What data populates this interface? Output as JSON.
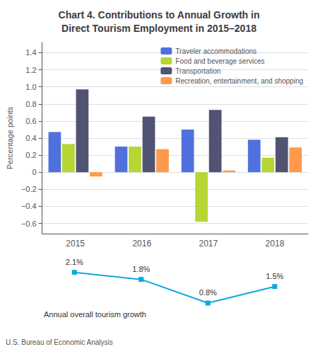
{
  "chart_data": [
    {
      "type": "bar",
      "title": "Chart 4. Contributions to Annual Growth in\nDirect Tourism Employment in 2015–2018",
      "ylabel": "Percentage points",
      "categories": [
        "2015",
        "2016",
        "2017",
        "2018"
      ],
      "series": [
        {
          "name": "Traveler accommodations",
          "values": [
            0.47,
            0.3,
            0.5,
            0.38
          ]
        },
        {
          "name": "Food and beverage services",
          "values": [
            0.33,
            0.3,
            -0.58,
            0.17
          ]
        },
        {
          "name": "Transportation",
          "values": [
            0.97,
            0.65,
            0.73,
            0.41
          ]
        },
        {
          "name": "Recreation, entertainment, and shopping",
          "values": [
            -0.05,
            0.27,
            0.02,
            0.29
          ]
        }
      ],
      "ylim": [
        -0.72,
        1.52
      ],
      "yticks": [
        {
          "value": -0.6,
          "label": "−0.6"
        },
        {
          "value": -0.4,
          "label": "−0.4"
        },
        {
          "value": -0.2,
          "label": "−0.2"
        },
        0,
        0.2,
        0.4,
        0.6,
        0.8,
        {
          "value": 1.0,
          "label": "1.0"
        },
        1.2,
        1.4
      ],
      "grid": true,
      "legend": "upper right"
    },
    {
      "type": "line",
      "categories": [
        "2015",
        "2016",
        "2017",
        "2018"
      ],
      "values": [
        2.1,
        1.8,
        0.8,
        1.5
      ],
      "value_labels": [
        "2.1%",
        "1.8%",
        "0.8%",
        "1.5%"
      ],
      "data_labels": true,
      "marker": "square",
      "ylim": [
        0.2,
        2.6
      ],
      "grid": false,
      "tick_labels": false,
      "annotations": [
        "Annual overall tourism growth",
        "U.S. Bureau of Economic Analysis"
      ]
    }
  ]
}
